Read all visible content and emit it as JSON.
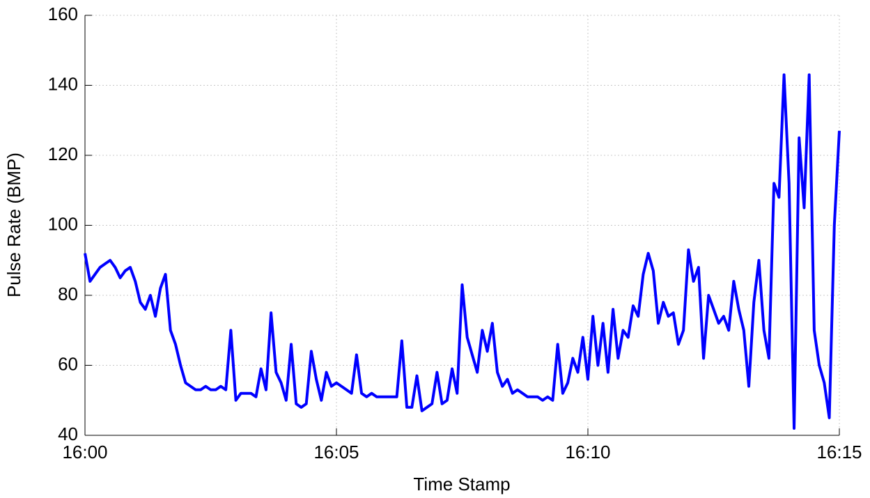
{
  "chart_data": {
    "type": "line",
    "x_label": "Time Stamp",
    "y_label": "Pulse Rate (BMP)",
    "x": [
      0,
      0.1,
      0.2,
      0.3,
      0.4,
      0.5,
      0.6,
      0.7,
      0.8,
      0.9,
      1,
      1.1,
      1.2,
      1.3,
      1.4,
      1.5,
      1.6,
      1.7,
      1.8,
      1.9,
      2,
      2.1,
      2.2,
      2.3,
      2.4,
      2.5,
      2.6,
      2.7,
      2.8,
      2.9,
      3,
      3.1,
      3.2,
      3.3,
      3.4,
      3.5,
      3.6,
      3.7,
      3.8,
      3.9,
      4,
      4.1,
      4.2,
      4.3,
      4.4,
      4.5,
      4.6,
      4.7,
      4.8,
      4.9,
      5,
      5.1,
      5.2,
      5.3,
      5.4,
      5.5,
      5.6,
      5.7,
      5.8,
      5.9,
      6,
      6.1,
      6.2,
      6.3,
      6.4,
      6.5,
      6.6,
      6.7,
      6.8,
      6.9,
      7,
      7.1,
      7.2,
      7.3,
      7.4,
      7.5,
      7.6,
      7.7,
      7.8,
      7.9,
      8,
      8.1,
      8.2,
      8.3,
      8.4,
      8.5,
      8.6,
      8.7,
      8.8,
      8.9,
      9,
      9.1,
      9.2,
      9.3,
      9.4,
      9.5,
      9.6,
      9.7,
      9.8,
      9.9,
      10,
      10.1,
      10.2,
      10.3,
      10.4,
      10.5,
      10.6,
      10.7,
      10.8,
      10.9,
      11,
      11.1,
      11.2,
      11.3,
      11.4,
      11.5,
      11.6,
      11.7,
      11.8,
      11.9,
      12,
      12.1,
      12.2,
      12.3,
      12.4,
      12.5,
      12.6,
      12.7,
      12.8,
      12.9,
      13,
      13.1,
      13.2,
      13.3,
      13.4,
      13.5,
      13.6,
      13.7,
      13.8,
      13.9,
      14,
      14.1,
      14.2,
      14.3,
      14.4,
      14.5,
      14.6,
      14.7,
      14.8,
      14.9,
      15
    ],
    "values": [
      92,
      84,
      86,
      88,
      89,
      90,
      88,
      85,
      87,
      88,
      84,
      78,
      76,
      80,
      74,
      82,
      86,
      70,
      66,
      60,
      55,
      54,
      53,
      53,
      54,
      53,
      53,
      54,
      53,
      70,
      50,
      52,
      52,
      52,
      51,
      59,
      53,
      75,
      58,
      55,
      50,
      66,
      49,
      48,
      49,
      64,
      56,
      50,
      58,
      54,
      55,
      54,
      53,
      52,
      63,
      52,
      51,
      52,
      51,
      51,
      51,
      51,
      51,
      67,
      48,
      48,
      57,
      47,
      48,
      49,
      58,
      49,
      50,
      59,
      52,
      83,
      68,
      63,
      58,
      70,
      64,
      72,
      58,
      54,
      56,
      52,
      53,
      52,
      51,
      51,
      51,
      50,
      51,
      50,
      66,
      52,
      55,
      62,
      58,
      68,
      56,
      74,
      60,
      72,
      58,
      76,
      62,
      70,
      68,
      77,
      74,
      86,
      92,
      87,
      72,
      78,
      74,
      75,
      66,
      70,
      93,
      84,
      88,
      62,
      80,
      76,
      72,
      74,
      70,
      84,
      76,
      70,
      54,
      78,
      90,
      70,
      62,
      112,
      108,
      143,
      112,
      42,
      125,
      105,
      143,
      70,
      60,
      55,
      45,
      100,
      127
    ],
    "color": "#0000ff",
    "xlim": [
      0,
      15
    ],
    "xticks": [
      {
        "value": 0,
        "label": "16:00"
      },
      {
        "value": 5,
        "label": "16:05"
      },
      {
        "value": 10,
        "label": "16:10"
      },
      {
        "value": 15,
        "label": "16:15"
      }
    ],
    "ylim": [
      40,
      160
    ],
    "yticks": [
      40,
      60,
      80,
      100,
      120,
      140,
      160
    ],
    "grid": true
  }
}
